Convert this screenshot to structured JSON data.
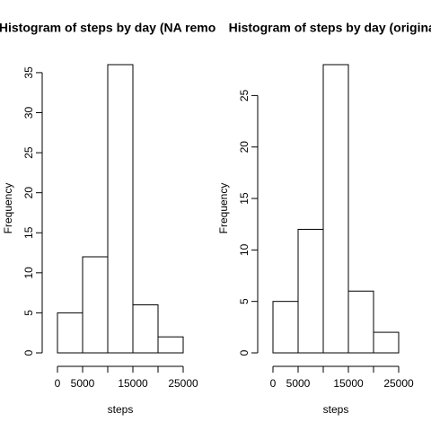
{
  "chart_data": [
    {
      "type": "histogram",
      "title": "Histogram of steps by day (NA removed)",
      "xlabel": "steps",
      "ylabel": "Frequency",
      "bins": [
        0,
        5000,
        10000,
        15000,
        20000,
        25000
      ],
      "values": [
        5,
        12,
        36,
        6,
        2
      ],
      "color": "#ffffff",
      "xlim": [
        0,
        25000
      ],
      "xticks": [
        0,
        5000,
        {
          "value": 10000,
          "label": null
        },
        15000,
        {
          "value": 20000,
          "label": null
        },
        25000
      ],
      "ylim": [
        0,
        36
      ],
      "yticks": [
        0,
        5,
        10,
        15,
        20,
        25,
        30,
        35
      ]
    },
    {
      "type": "histogram",
      "title": "Histogram of steps by day (original)",
      "xlabel": "steps",
      "ylabel": "Frequency",
      "bins": [
        0,
        5000,
        10000,
        15000,
        20000,
        25000
      ],
      "values": [
        5,
        12,
        28,
        6,
        2
      ],
      "color": "#ffffff",
      "xlim": [
        0,
        25000
      ],
      "xticks": [
        0,
        5000,
        {
          "value": 10000,
          "label": null
        },
        15000,
        {
          "value": 20000,
          "label": null
        },
        25000
      ],
      "ylim": [
        0,
        28
      ],
      "yticks": [
        0,
        5,
        10,
        15,
        20,
        25
      ]
    }
  ]
}
